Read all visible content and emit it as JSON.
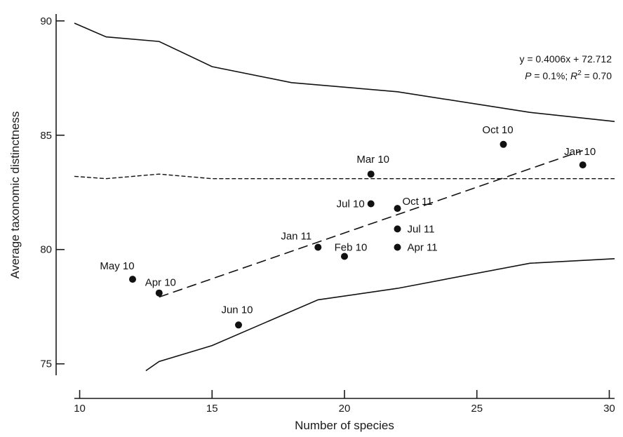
{
  "chart_data": {
    "type": "scatter",
    "xlabel": "Number of species",
    "ylabel": "Average taxonomic distinctness",
    "xlim": [
      9.8,
      30.2
    ],
    "ylim": [
      74.5,
      90.3
    ],
    "xticks": [
      10,
      15,
      20,
      25,
      30
    ],
    "yticks": [
      75,
      80,
      85,
      90
    ],
    "points": [
      {
        "label": "May 10",
        "x": 12,
        "y": 78.7
      },
      {
        "label": "Apr 10",
        "x": 13,
        "y": 78.1
      },
      {
        "label": "Jun 10",
        "x": 16,
        "y": 76.7
      },
      {
        "label": "Jan 11",
        "x": 19,
        "y": 80.1
      },
      {
        "label": "Feb 10",
        "x": 20,
        "y": 79.7
      },
      {
        "label": "Mar 10",
        "x": 21,
        "y": 83.3
      },
      {
        "label": "Jul 10",
        "x": 21,
        "y": 82.0
      },
      {
        "label": "Oct 11",
        "x": 22,
        "y": 81.8
      },
      {
        "label": "Jul 11",
        "x": 22,
        "y": 80.9
      },
      {
        "label": "Apr 11",
        "x": 22,
        "y": 80.1
      },
      {
        "label": "Oct 10",
        "x": 26,
        "y": 84.6
      },
      {
        "label": "Jan 10",
        "x": 29,
        "y": 83.7
      }
    ],
    "upper_limit": {
      "x": [
        9.8,
        11,
        13,
        15,
        18,
        22,
        27,
        30.2
      ],
      "y": [
        89.9,
        89.3,
        89.1,
        88.0,
        87.3,
        86.9,
        86.0,
        85.6
      ]
    },
    "lower_limit": {
      "x": [
        12.5,
        13,
        15,
        19,
        22,
        27,
        30.2
      ],
      "y": [
        74.7,
        75.1,
        75.8,
        77.8,
        78.3,
        79.4,
        79.6
      ]
    },
    "mean_line": {
      "x": [
        9.8,
        11,
        13,
        15,
        20,
        30.2
      ],
      "y": [
        83.2,
        83.1,
        83.3,
        83.1,
        83.1,
        83.1
      ]
    },
    "fit_line": {
      "x": [
        13,
        29
      ],
      "y": [
        77.92,
        84.33
      ]
    },
    "annotation": {
      "equation": "y = 0.4006x + 72.712",
      "stats": "P = 0.1%; R2 = 0.70"
    }
  }
}
